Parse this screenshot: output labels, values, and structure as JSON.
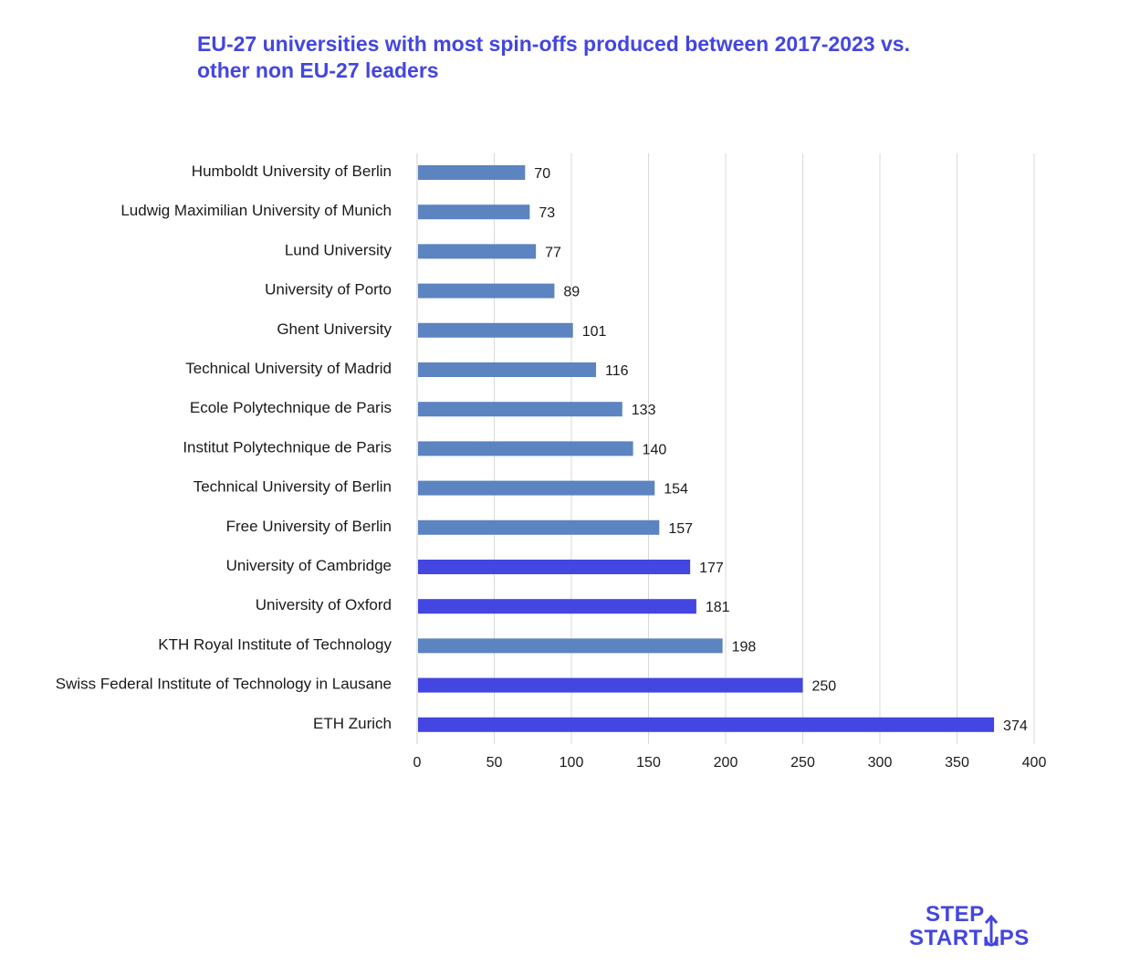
{
  "chart_data": {
    "type": "bar",
    "orientation": "horizontal",
    "title": "EU-27 universities with most spin-offs produced between 2017-2023 vs. other non EU-27 leaders",
    "categories": [
      "Humboldt University of Berlin",
      "Ludwig Maximilian University of Munich",
      "Lund University",
      "University of Porto",
      "Ghent University",
      "Technical University of Madrid",
      "Ecole Polytechnique de Paris",
      "Institut Polytechnique de Paris",
      "Technical University of Berlin",
      "Free University of Berlin",
      "University of Cambridge",
      "University of Oxford",
      "KTH Royal Institute of Technology",
      "Swiss Federal Institute of Technology in Lausane",
      "ETH Zurich"
    ],
    "values": [
      70,
      73,
      77,
      89,
      101,
      116,
      133,
      140,
      154,
      157,
      177,
      181,
      198,
      250,
      374
    ],
    "group": [
      "eu",
      "eu",
      "eu",
      "eu",
      "eu",
      "eu",
      "eu",
      "eu",
      "eu",
      "eu",
      "non-eu",
      "non-eu",
      "eu",
      "non-eu",
      "non-eu"
    ],
    "colors": {
      "eu": "#5b84c0",
      "non-eu": "#4346e0"
    },
    "xlim": [
      0,
      400
    ],
    "xticks": [
      0,
      50,
      100,
      150,
      200,
      250,
      300,
      350,
      400
    ],
    "grid": true,
    "legend": "none",
    "xlabel": "",
    "ylabel": ""
  },
  "logo": {
    "line1": "STEP",
    "line2_a": "START",
    "line2_b": "PS",
    "arrow_icon": "up-arrow-icon"
  }
}
